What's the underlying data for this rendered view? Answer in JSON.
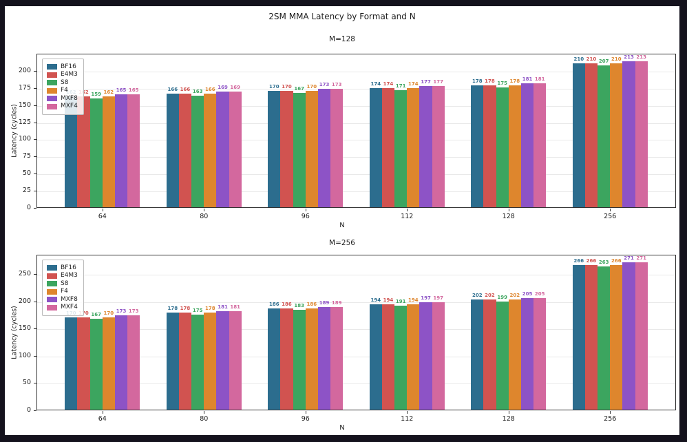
{
  "figure": {
    "suptitle": "2SM MMA Latency by Format and N"
  },
  "colors": {
    "frame_background": "#14121d",
    "figure_background": "#ffffff",
    "gridline": "#e9e9e9",
    "spine": "#333333",
    "text": "#1c1c1c"
  },
  "chart_data": [
    {
      "type": "bar",
      "title": "M=128",
      "xlabel": "N",
      "ylabel": "Latency (cycles)",
      "categories": [
        "64",
        "80",
        "96",
        "112",
        "128",
        "256"
      ],
      "series": [
        {
          "name": "BF16",
          "color": "#2c6d8e",
          "values": [
            162,
            166,
            170,
            174,
            178,
            210
          ]
        },
        {
          "name": "E4M3",
          "color": "#d15350",
          "values": [
            162,
            166,
            170,
            174,
            178,
            210
          ]
        },
        {
          "name": "S8",
          "color": "#3ca55f",
          "values": [
            159,
            163,
            167,
            171,
            175,
            207
          ]
        },
        {
          "name": "F4",
          "color": "#de862d",
          "values": [
            162,
            166,
            170,
            174,
            178,
            210
          ]
        },
        {
          "name": "MXF8",
          "color": "#8d53c6",
          "values": [
            165,
            169,
            173,
            177,
            181,
            213
          ]
        },
        {
          "name": "MXF4",
          "color": "#d3689e",
          "values": [
            165,
            169,
            173,
            177,
            181,
            213
          ]
        }
      ],
      "ylim": [
        0,
        225
      ],
      "yticks": [
        0,
        25,
        50,
        75,
        100,
        125,
        150,
        175,
        200
      ],
      "grid": true,
      "legend_position": "upper left"
    },
    {
      "type": "bar",
      "title": "M=256",
      "xlabel": "N",
      "ylabel": "Latency (cycles)",
      "categories": [
        "64",
        "80",
        "96",
        "112",
        "128",
        "256"
      ],
      "series": [
        {
          "name": "BF16",
          "color": "#2c6d8e",
          "values": [
            170,
            178,
            186,
            194,
            202,
            266
          ]
        },
        {
          "name": "E4M3",
          "color": "#d15350",
          "values": [
            170,
            178,
            186,
            194,
            202,
            266
          ]
        },
        {
          "name": "S8",
          "color": "#3ca55f",
          "values": [
            167,
            175,
            183,
            191,
            199,
            263
          ]
        },
        {
          "name": "F4",
          "color": "#de862d",
          "values": [
            170,
            178,
            186,
            194,
            202,
            266
          ]
        },
        {
          "name": "MXF8",
          "color": "#8d53c6",
          "values": [
            173,
            181,
            189,
            197,
            205,
            271
          ]
        },
        {
          "name": "MXF4",
          "color": "#d3689e",
          "values": [
            173,
            181,
            189,
            197,
            205,
            271
          ]
        }
      ],
      "ylim": [
        0,
        286
      ],
      "yticks": [
        0,
        50,
        100,
        150,
        200,
        250
      ],
      "grid": true,
      "legend_position": "upper left"
    }
  ]
}
